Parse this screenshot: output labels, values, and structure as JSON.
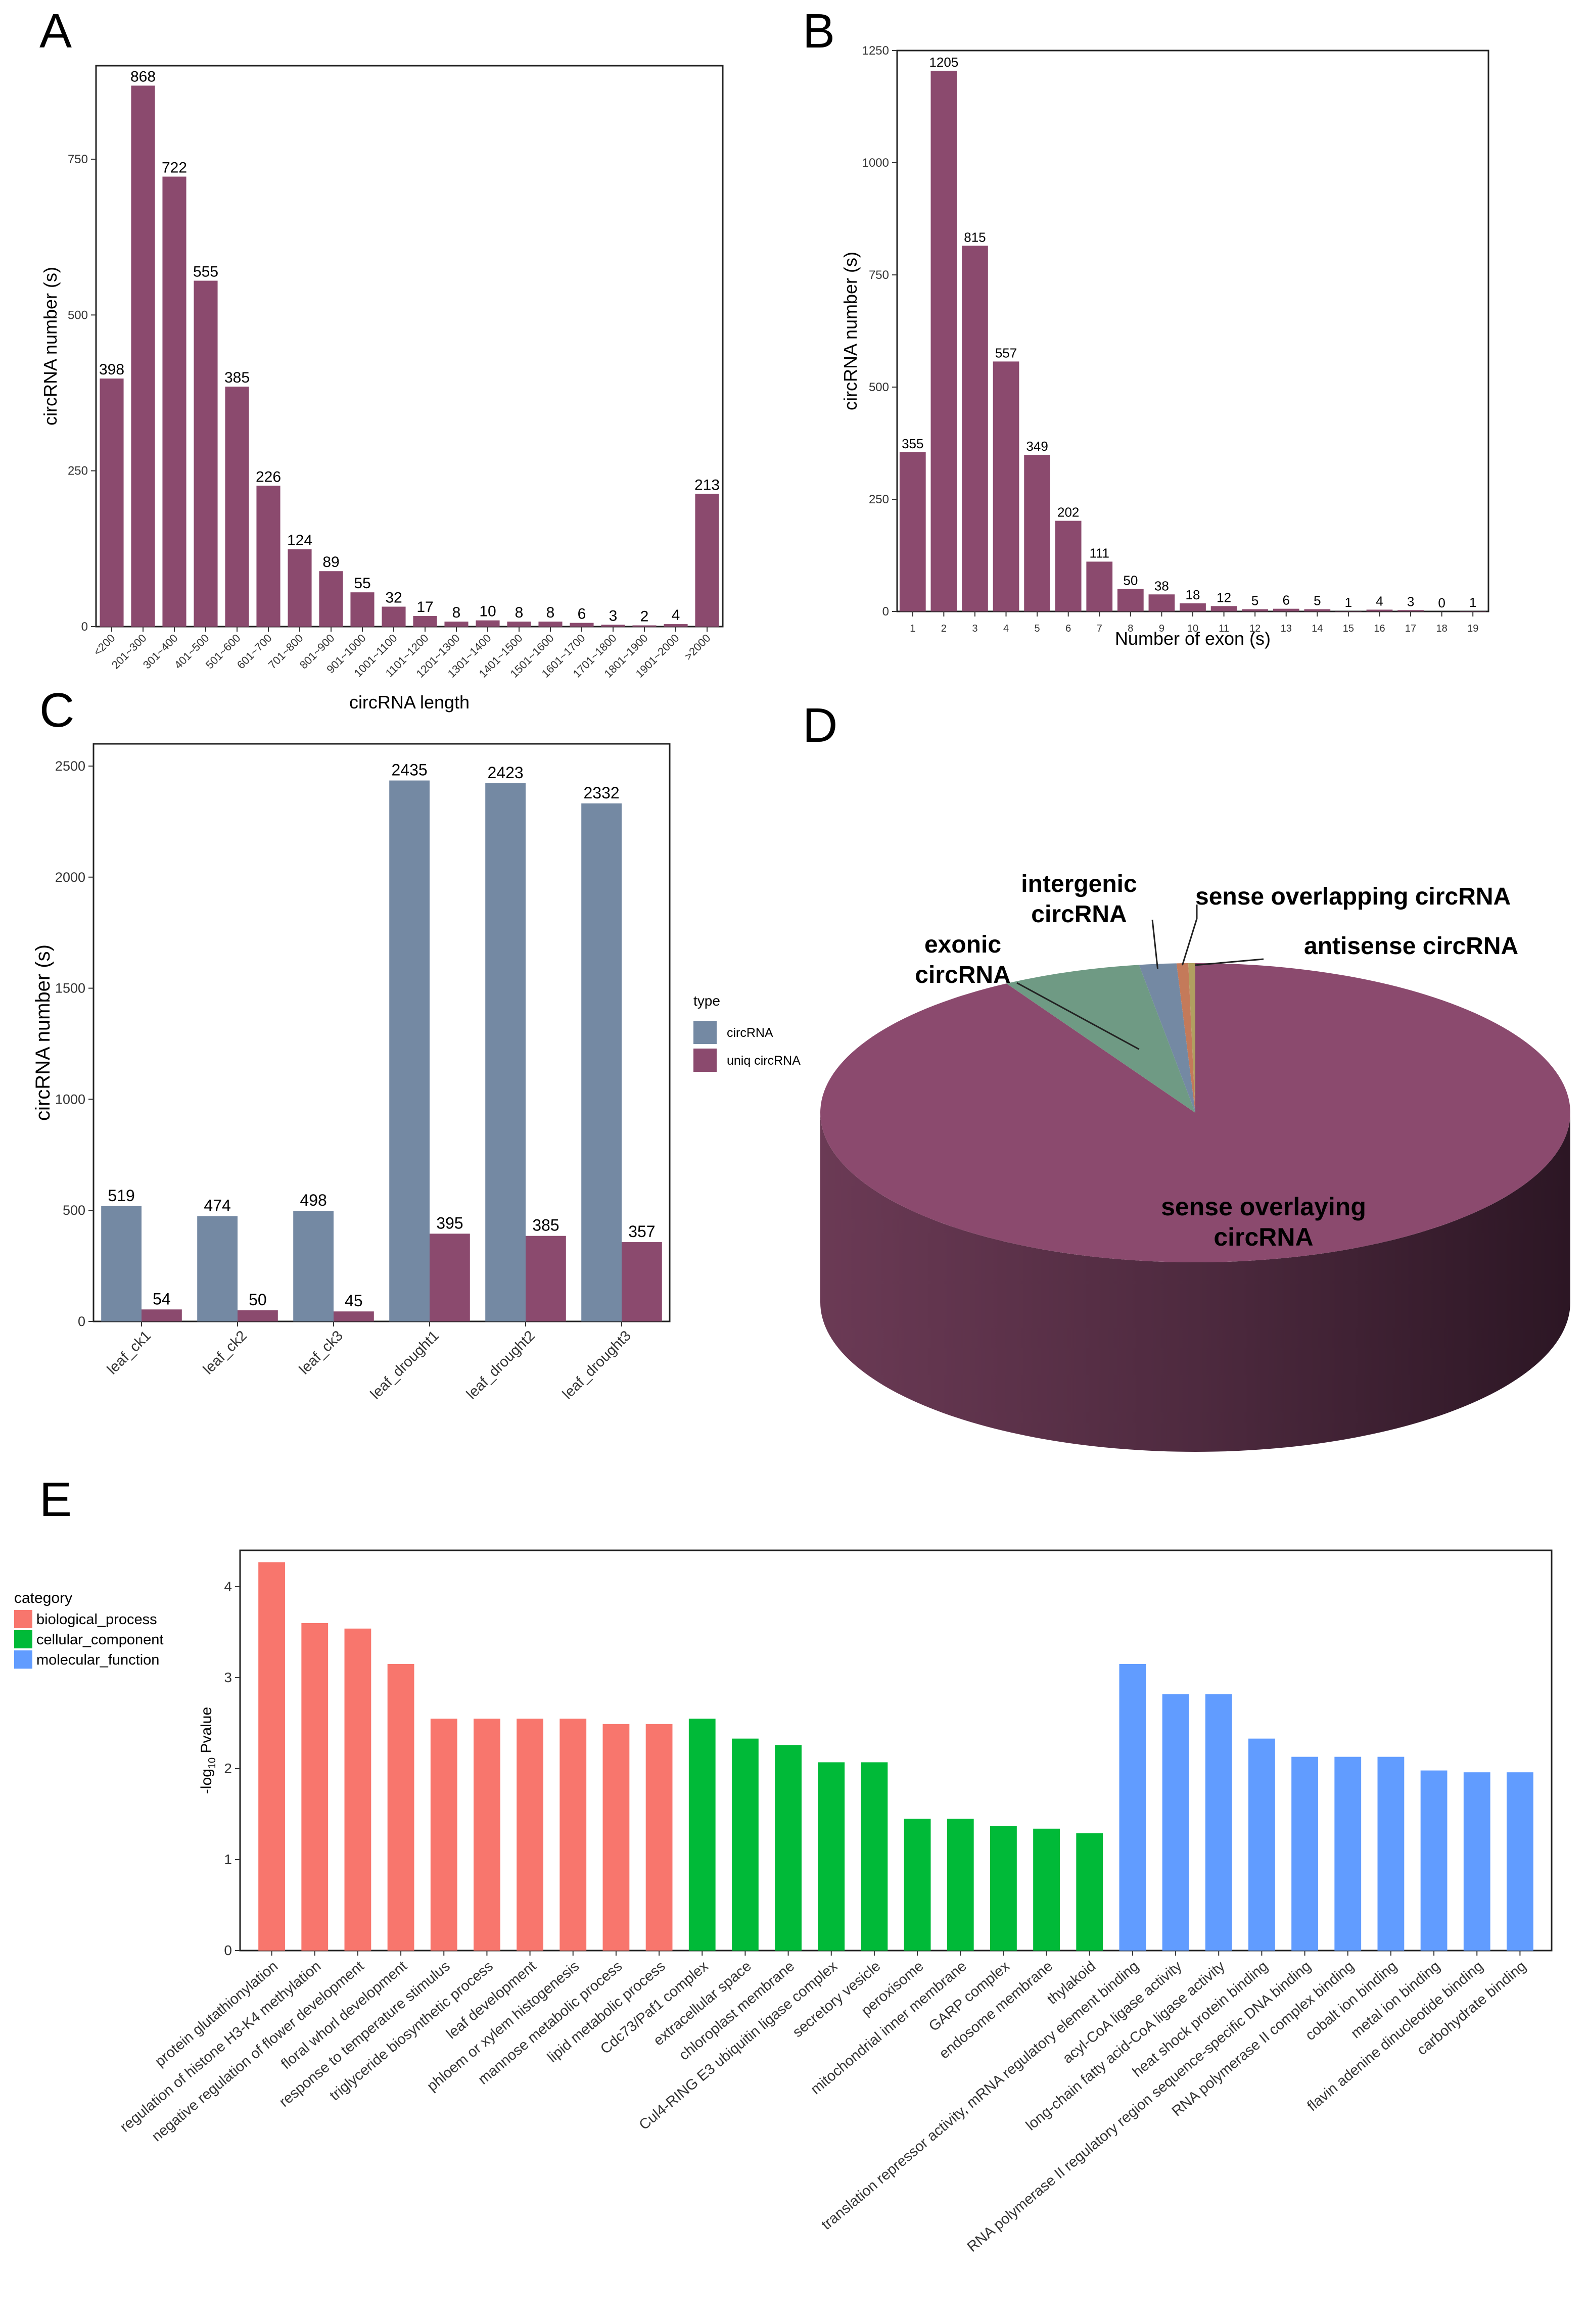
{
  "panels": {
    "a": "A",
    "b": "B",
    "c": "C",
    "d": "D",
    "e": "E"
  },
  "chart_data": [
    {
      "id": "A",
      "type": "bar",
      "title": "",
      "xlabel": "circRNA length",
      "ylabel": "circRNA number (s)",
      "ylim": [
        0,
        900
      ],
      "yticks": [
        0,
        250,
        500,
        750
      ],
      "categories": [
        "<200",
        "201~300",
        "301~400",
        "401~500",
        "501~600",
        "601~700",
        "701~800",
        "801~900",
        "901~1000",
        "1001~1100",
        "1101~1200",
        "1201~1300",
        "1301~1400",
        "1401~1500",
        "1501~1600",
        "1601~1700",
        "1701~1800",
        "1801~1900",
        "1901~2000",
        ">2000"
      ],
      "values": [
        398,
        868,
        722,
        555,
        385,
        226,
        124,
        89,
        55,
        32,
        17,
        8,
        10,
        8,
        8,
        6,
        3,
        2,
        4,
        213
      ],
      "color": "#8b4a6e"
    },
    {
      "id": "B",
      "type": "bar",
      "title": "",
      "xlabel": "Number of exon (s)",
      "ylabel": "circRNA number (s)",
      "ylim": [
        0,
        1250
      ],
      "yticks": [
        0,
        250,
        500,
        750,
        1000,
        1250
      ],
      "categories": [
        "1",
        "2",
        "3",
        "4",
        "5",
        "6",
        "7",
        "8",
        "9",
        "10",
        "11",
        "12",
        "13",
        "14",
        "15",
        "16",
        "17",
        "18",
        "19"
      ],
      "values": [
        355,
        1205,
        815,
        557,
        349,
        202,
        111,
        50,
        38,
        18,
        12,
        5,
        6,
        5,
        1,
        4,
        3,
        0,
        1
      ],
      "color": "#8b4a6e"
    },
    {
      "id": "C",
      "type": "bar",
      "title": "",
      "xlabel": "",
      "ylabel": "circRNA number (s)",
      "ylim": [
        0,
        2600
      ],
      "yticks": [
        0,
        500,
        1000,
        1500,
        2000,
        2500
      ],
      "categories": [
        "leaf_ck1",
        "leaf_ck2",
        "leaf_ck3",
        "leaf_drought1",
        "leaf_drought2",
        "leaf_drought3"
      ],
      "series": [
        {
          "name": "circRNA",
          "color": "#7489a3",
          "values": [
            519,
            474,
            498,
            2435,
            2423,
            2332
          ]
        },
        {
          "name": "uniq circRNA",
          "color": "#8b4a6e",
          "values": [
            54,
            50,
            45,
            395,
            385,
            357
          ]
        }
      ],
      "legend_title": "type",
      "legend_position": "right"
    },
    {
      "id": "D",
      "type": "pie",
      "title": "",
      "slices": [
        {
          "label": "sense overlaying circRNA",
          "value": 91.6,
          "color": "#8b4a6e"
        },
        {
          "label": "exonic circRNA",
          "value": 6.0,
          "color": "#6f9a84"
        },
        {
          "label": "intergenic circRNA",
          "value": 1.6,
          "color": "#7489a3"
        },
        {
          "label": "sense overlapping circRNA",
          "value": 0.5,
          "color": "#c47a5a"
        },
        {
          "label": "antisense circRNA",
          "value": 0.3,
          "color": "#b0a060"
        }
      ],
      "label_lines": {
        "sense_overlaying": [
          "sense overlaying",
          "circRNA"
        ],
        "exonic": [
          "exonic",
          "circRNA"
        ],
        "intergenic": [
          "intergenic",
          "circRNA"
        ],
        "sense_overlapping": [
          "sense overlapping circRNA"
        ],
        "antisense": [
          "antisense circRNA"
        ]
      }
    },
    {
      "id": "E",
      "type": "bar",
      "title": "",
      "xlabel": "",
      "ylabel_main": "-log",
      "ylabel_sub": "10",
      "ylabel_tail": " Pvalue",
      "ylim": [
        0,
        4.4
      ],
      "yticks": [
        0,
        1,
        2,
        3,
        4
      ],
      "legend_title": "category",
      "legend_position": "top-left",
      "legend": [
        {
          "name": "biological_process",
          "color": "#f8766d",
          "text_color": "#e8262a"
        },
        {
          "name": "cellular_component",
          "color": "#00ba38",
          "text_color": "#2fd22f"
        },
        {
          "name": "molecular_function",
          "color": "#619cff",
          "text_color": "#29b6ea"
        }
      ],
      "categories": [
        "protein glutathionylation",
        "regulation of histone H3-K4 methylation",
        "negative regulation of flower development",
        "floral whorl development",
        "response to temperature stimulus",
        "triglyceride biosynthetic process",
        "leaf development",
        "phloem or xylem histogenesis",
        "mannose metabolic process",
        "lipid metabolic process",
        "Cdc73/Paf1 complex",
        "extracellular space",
        "chloroplast membrane",
        "Cul4-RING E3 ubiquitin ligase complex",
        "secretory vesicle",
        "peroxisome",
        "mitochondrial inner membrane",
        "GARP complex",
        "endosome membrane",
        "thylakoid",
        "translation repressor activity, mRNA regulatory element binding",
        "acyl-CoA ligase activity",
        "long-chain fatty acid-CoA ligase activity",
        "heat shock protein binding",
        "RNA polymerase II regulatory region sequence-specific DNA binding",
        "RNA polymerase II complex binding",
        "cobalt ion binding",
        "metal ion binding",
        "flavin adenine dinucleotide binding",
        "carbohydrate binding"
      ],
      "category_groups": [
        0,
        0,
        0,
        0,
        0,
        0,
        0,
        0,
        0,
        0,
        1,
        1,
        1,
        1,
        1,
        1,
        1,
        1,
        1,
        1,
        2,
        2,
        2,
        2,
        2,
        2,
        2,
        2,
        2,
        2
      ],
      "values": [
        4.27,
        3.6,
        3.54,
        3.15,
        2.55,
        2.55,
        2.55,
        2.55,
        2.49,
        2.49,
        2.55,
        2.33,
        2.26,
        2.07,
        2.07,
        1.45,
        1.45,
        1.37,
        1.34,
        1.29,
        3.15,
        2.82,
        2.82,
        2.33,
        2.13,
        2.13,
        2.13,
        1.98,
        1.96,
        1.96
      ]
    }
  ]
}
